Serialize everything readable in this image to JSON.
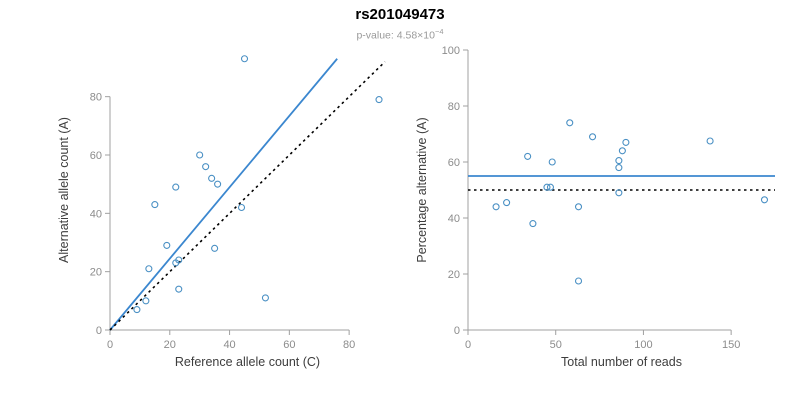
{
  "header": {
    "title": "rs201049473",
    "p_value_base": "p-value: 4.58×10",
    "p_value_exponent": "−4"
  },
  "colors": {
    "point": "#4a90c4",
    "line_blue": "#3b87cf",
    "line_black": "#000000",
    "axis": "#a0a0a0",
    "tick_label": "#8c8c8c",
    "axis_label": "#3d3d3d",
    "title": "#000000",
    "subtitle": "#9a9a9a",
    "background": "#ffffff"
  },
  "chart_data": [
    {
      "type": "scatter",
      "name": "allele-count-scatter",
      "title": "",
      "xlabel": "Reference allele count (C)",
      "ylabel": "Alternative allele count (A)",
      "xlim": [
        0,
        92
      ],
      "ylim": [
        0,
        96
      ],
      "xticks": [
        0,
        20,
        40,
        60,
        80
      ],
      "yticks": [
        0,
        20,
        40,
        60,
        80
      ],
      "grid": false,
      "legend": "none",
      "points": [
        [
          45,
          93
        ],
        [
          90,
          79
        ],
        [
          30,
          60
        ],
        [
          32,
          56
        ],
        [
          34,
          52
        ],
        [
          36,
          50
        ],
        [
          22,
          49
        ],
        [
          15,
          43
        ],
        [
          44,
          42
        ],
        [
          19,
          29
        ],
        [
          35,
          28
        ],
        [
          13,
          21
        ],
        [
          22,
          23
        ],
        [
          23,
          24
        ],
        [
          23,
          14
        ],
        [
          52,
          11
        ],
        [
          12,
          10
        ],
        [
          9,
          7
        ]
      ],
      "lines": [
        {
          "name": "fit-line",
          "x1": 0,
          "y1": 0,
          "x2": 76,
          "y2": 93,
          "color": "blue",
          "style": "solid"
        },
        {
          "name": "identity-line",
          "x1": 0,
          "y1": 0,
          "x2": 92,
          "y2": 92,
          "color": "black",
          "style": "dotted"
        }
      ]
    },
    {
      "type": "scatter",
      "name": "percentage-vs-reads-scatter",
      "title": "",
      "xlabel": "Total number of reads",
      "ylabel": "Percentage alternative (A)",
      "xlim": [
        0,
        175
      ],
      "ylim": [
        0,
        100
      ],
      "xticks": [
        0,
        50,
        100,
        150
      ],
      "yticks": [
        0,
        20,
        40,
        60,
        80,
        100
      ],
      "grid": false,
      "legend": "none",
      "points": [
        [
          16,
          44
        ],
        [
          22,
          45.5
        ],
        [
          34,
          62
        ],
        [
          37,
          38
        ],
        [
          45,
          51
        ],
        [
          47,
          51
        ],
        [
          48,
          60
        ],
        [
          58,
          74
        ],
        [
          63,
          17.5
        ],
        [
          63,
          44
        ],
        [
          71,
          69
        ],
        [
          86,
          49
        ],
        [
          86,
          58
        ],
        [
          86,
          60.5
        ],
        [
          88,
          64
        ],
        [
          90,
          67
        ],
        [
          138,
          67.5
        ],
        [
          169,
          46.5
        ]
      ],
      "lines": [
        {
          "name": "mean-percentage-line",
          "x1": 0,
          "y1": 55,
          "x2": 175,
          "y2": 55,
          "color": "blue",
          "style": "solid"
        },
        {
          "name": "null-50-percent-line",
          "x1": 0,
          "y1": 50,
          "x2": 175,
          "y2": 50,
          "color": "black",
          "style": "dotted"
        }
      ]
    }
  ]
}
